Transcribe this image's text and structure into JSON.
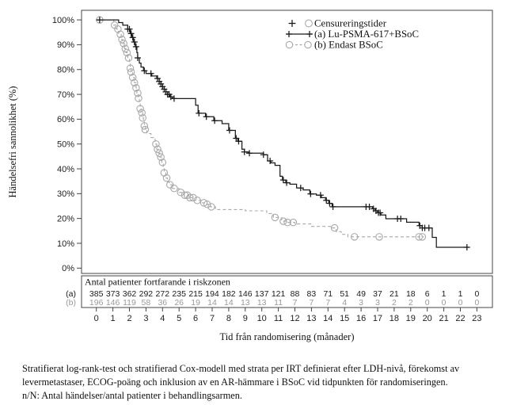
{
  "figure": {
    "footnote_lines": [
      "Stratifierat log-rank-test och stratifierad Cox-modell med strata per IRT definierat efter LDH-nivå, förekomst av",
      "levermetastaser, ECOG-poäng och inklusion av en AR-hämmare i BSoC vid tidpunkten för randomiseringen.",
      "n/N: Antal händelser/antal patienter i behandlingsarmen."
    ]
  },
  "chart_data": {
    "type": "line",
    "subtype": "kaplan-meier-step",
    "title": "",
    "xlabel": "Tid från randomisering (månader)",
    "ylabel": "Händelsefri sannolikhet (%)",
    "xlim": [
      0,
      23
    ],
    "ylim": [
      0,
      100
    ],
    "grid": false,
    "x_ticks": [
      0,
      1,
      2,
      3,
      4,
      5,
      6,
      7,
      8,
      9,
      10,
      11,
      12,
      13,
      14,
      15,
      16,
      17,
      18,
      19,
      20,
      21,
      22,
      23
    ],
    "y_tick_labels": [
      "0%",
      "10%",
      "20%",
      "30%",
      "40%",
      "50%",
      "60%",
      "70%",
      "80%",
      "90%",
      "100%"
    ],
    "legend": {
      "position": "top-right-inside",
      "censoring_label": "Censureringstider",
      "entries": [
        {
          "id": "a",
          "label": "(a) Lu-PSMA-617+BSoC",
          "line": "solid",
          "marker": "plus",
          "color": "#1a1a1a"
        },
        {
          "id": "b",
          "label": "(b) Endast BSoC",
          "line": "dashed",
          "marker": "circle",
          "color": "#a9a9a9"
        }
      ]
    },
    "series": [
      {
        "id": "a",
        "name": "(a) Lu-PSMA-617+BSoC",
        "color": "#1a1a1a",
        "line_style": "solid",
        "censor_marker": "plus",
        "steps": [
          [
            0,
            100
          ],
          [
            1.35,
            98.9
          ],
          [
            1.6,
            97.9
          ],
          [
            1.9,
            96.3
          ],
          [
            2.05,
            94.5
          ],
          [
            2.15,
            92.9
          ],
          [
            2.25,
            91.1
          ],
          [
            2.35,
            89.2
          ],
          [
            2.45,
            86.8
          ],
          [
            2.5,
            84.7
          ],
          [
            2.6,
            82.6
          ],
          [
            2.7,
            81.0
          ],
          [
            2.85,
            79.5
          ],
          [
            3.0,
            78.4
          ],
          [
            3.35,
            77.4
          ],
          [
            3.65,
            76.4
          ],
          [
            3.8,
            75.2
          ],
          [
            3.9,
            74.2
          ],
          [
            4.0,
            73.1
          ],
          [
            4.1,
            72.1
          ],
          [
            4.2,
            71.0
          ],
          [
            4.3,
            70.0
          ],
          [
            4.45,
            69.0
          ],
          [
            4.6,
            68.3
          ],
          [
            6.0,
            65.6
          ],
          [
            6.15,
            62.4
          ],
          [
            6.6,
            61.0
          ],
          [
            7.1,
            59.4
          ],
          [
            7.6,
            58.2
          ],
          [
            8.0,
            55.5
          ],
          [
            8.4,
            52.3
          ],
          [
            8.55,
            51.1
          ],
          [
            8.8,
            47.9
          ],
          [
            8.95,
            46.8
          ],
          [
            9.2,
            46.3
          ],
          [
            10.1,
            45.7
          ],
          [
            10.35,
            43.2
          ],
          [
            10.55,
            42.4
          ],
          [
            10.8,
            41.4
          ],
          [
            11.1,
            37.0
          ],
          [
            11.25,
            35.5
          ],
          [
            11.45,
            34.4
          ],
          [
            11.7,
            33.8
          ],
          [
            12.1,
            32.3
          ],
          [
            12.5,
            31.5
          ],
          [
            12.9,
            29.9
          ],
          [
            13.3,
            29.4
          ],
          [
            13.6,
            28.4
          ],
          [
            13.85,
            27.3
          ],
          [
            14.05,
            26.1
          ],
          [
            14.25,
            24.7
          ],
          [
            16.7,
            23.9
          ],
          [
            16.85,
            23.1
          ],
          [
            17.0,
            22.3
          ],
          [
            17.2,
            21.4
          ],
          [
            17.5,
            19.9
          ],
          [
            18.75,
            18.5
          ],
          [
            19.5,
            17.1
          ],
          [
            19.7,
            16.2
          ],
          [
            20.3,
            12.4
          ],
          [
            20.55,
            8.4
          ],
          [
            22.5,
            8.4
          ]
        ],
        "censor_times": [
          0.2,
          1.9,
          2.0,
          2.1,
          2.2,
          2.3,
          2.4,
          2.5,
          2.9,
          3.3,
          3.7,
          3.8,
          3.9,
          4.0,
          4.1,
          4.2,
          4.3,
          4.4,
          4.5,
          4.7,
          6.2,
          6.65,
          7.15,
          8.05,
          8.45,
          8.6,
          8.95,
          9.25,
          10.1,
          10.5,
          11.3,
          11.5,
          12.35,
          12.95,
          13.55,
          13.9,
          14.1,
          14.3,
          16.3,
          16.5,
          16.75,
          16.9,
          17.05,
          17.15,
          18.2,
          18.4,
          19.55,
          19.7,
          19.85,
          20.1,
          22.4
        ]
      },
      {
        "id": "b",
        "name": "(b) Endast BSoC",
        "color": "#a9a9a9",
        "line_style": "dashed",
        "censor_marker": "circle",
        "steps": [
          [
            0,
            100
          ],
          [
            1.05,
            97.9
          ],
          [
            1.2,
            96.3
          ],
          [
            1.35,
            94.2
          ],
          [
            1.5,
            92.1
          ],
          [
            1.6,
            90.5
          ],
          [
            1.7,
            88.4
          ],
          [
            1.8,
            86.8
          ],
          [
            1.9,
            84.7
          ],
          [
            2.0,
            82.6
          ],
          [
            2.05,
            80.5
          ],
          [
            2.1,
            79.0
          ],
          [
            2.2,
            76.8
          ],
          [
            2.3,
            74.7
          ],
          [
            2.4,
            72.6
          ],
          [
            2.45,
            70.5
          ],
          [
            2.55,
            68.4
          ],
          [
            2.6,
            66.3
          ],
          [
            2.65,
            64.2
          ],
          [
            2.7,
            62.6
          ],
          [
            2.8,
            60.5
          ],
          [
            2.85,
            58.9
          ],
          [
            2.9,
            57.3
          ],
          [
            2.95,
            55.8
          ],
          [
            3.05,
            54.2
          ],
          [
            3.3,
            52.6
          ],
          [
            3.55,
            50.0
          ],
          [
            3.65,
            47.9
          ],
          [
            3.75,
            46.3
          ],
          [
            3.85,
            44.7
          ],
          [
            3.95,
            42.6
          ],
          [
            4.05,
            40.0
          ],
          [
            4.1,
            38.4
          ],
          [
            4.2,
            36.3
          ],
          [
            4.3,
            34.7
          ],
          [
            4.4,
            33.6
          ],
          [
            4.6,
            32.1
          ],
          [
            5.0,
            30.5
          ],
          [
            5.3,
            29.4
          ],
          [
            5.6,
            28.4
          ],
          [
            5.9,
            27.3
          ],
          [
            6.3,
            26.3
          ],
          [
            6.6,
            25.7
          ],
          [
            6.9,
            24.7
          ],
          [
            7.2,
            23.6
          ],
          [
            9.0,
            23.1
          ],
          [
            10.3,
            22.0
          ],
          [
            10.7,
            20.4
          ],
          [
            11.2,
            18.9
          ],
          [
            11.5,
            18.4
          ],
          [
            12.0,
            17.8
          ],
          [
            13.0,
            16.8
          ],
          [
            14.2,
            16.2
          ],
          [
            14.5,
            14.7
          ],
          [
            14.8,
            13.6
          ],
          [
            15.2,
            12.6
          ],
          [
            19.8,
            12.6
          ]
        ],
        "censor_times": [
          0.2,
          1.1,
          1.3,
          1.45,
          1.55,
          1.65,
          1.75,
          1.85,
          1.95,
          2.05,
          2.1,
          2.2,
          2.3,
          2.4,
          2.5,
          2.55,
          2.65,
          2.75,
          2.8,
          2.9,
          2.95,
          3.6,
          3.7,
          3.8,
          3.9,
          4.0,
          4.1,
          4.25,
          4.45,
          4.7,
          5.1,
          5.35,
          5.5,
          5.65,
          5.85,
          6.1,
          6.5,
          6.7,
          6.95,
          10.8,
          11.3,
          11.55,
          11.9,
          14.4,
          15.6,
          17.1,
          19.5,
          19.7
        ]
      }
    ],
    "risk_table": {
      "title": "Antal patienter fortfarande i riskzonen",
      "times": [
        0,
        1,
        2,
        3,
        4,
        5,
        6,
        7,
        8,
        9,
        10,
        11,
        12,
        13,
        14,
        15,
        16,
        17,
        18,
        19,
        20,
        21,
        22,
        23
      ],
      "rows": [
        {
          "label": "(a)",
          "color": "#1a1a1a",
          "values": [
            385,
            373,
            362,
            292,
            272,
            235,
            215,
            194,
            182,
            146,
            137,
            121,
            88,
            83,
            71,
            51,
            49,
            37,
            21,
            18,
            6,
            1,
            1,
            0
          ]
        },
        {
          "label": "(b)",
          "color": "#9a9a9a",
          "values": [
            196,
            146,
            119,
            58,
            36,
            26,
            19,
            14,
            14,
            13,
            13,
            11,
            7,
            7,
            7,
            4,
            3,
            3,
            2,
            2,
            0,
            0,
            0,
            0
          ]
        }
      ]
    }
  }
}
